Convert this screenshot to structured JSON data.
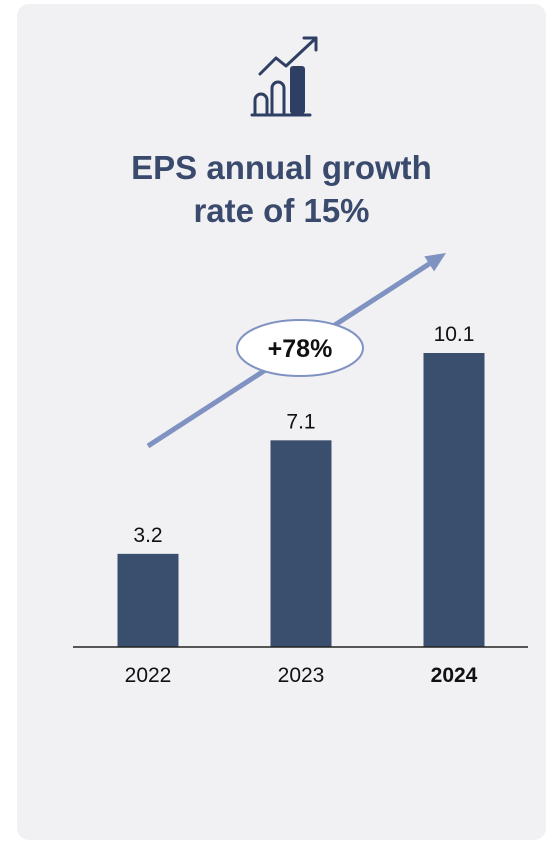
{
  "colors": {
    "card_background": "#f1f0f3",
    "bar": "#3a4e6e",
    "title": "#3a4a6d",
    "growth_arrow": "#7f92c2",
    "text": "#111111"
  },
  "header_icon": "growth-bar-chart-icon",
  "title_lines": [
    "EPS annual growth",
    "rate of 15%"
  ],
  "chart_data": {
    "type": "bar",
    "title": "EPS annual growth rate of 15%",
    "categories": [
      "2022",
      "2023",
      "2024"
    ],
    "values": [
      3.2,
      7.1,
      10.1
    ],
    "data_labels": [
      "3.2",
      "7.1",
      "10.1"
    ],
    "highlighted_category": "2024",
    "ylim": [
      0,
      10.1
    ],
    "grid": false,
    "annotation": {
      "label": "+78%",
      "from_category": "2022",
      "to_category": "2024"
    }
  }
}
